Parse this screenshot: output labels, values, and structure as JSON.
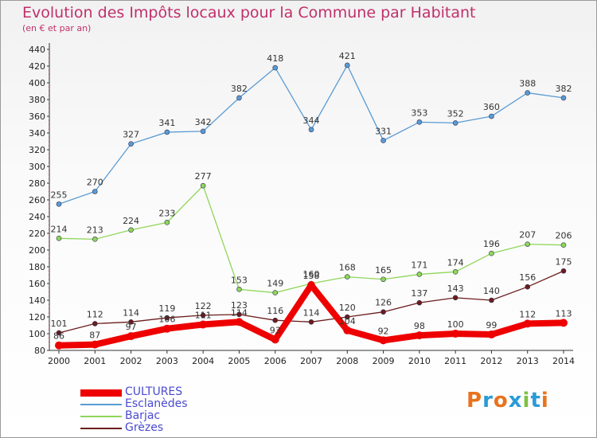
{
  "header": {
    "title": "Evolution des Impôts locaux pour la Commune par Habitant",
    "subtitle": "(en € et par an)"
  },
  "logo": {
    "text": "Proxiti",
    "colors": [
      "#e8731c",
      "#2a9bd6",
      "#e8731c",
      "#2a9bd6",
      "#7cc242",
      "#2a9bd6",
      "#e8731c"
    ]
  },
  "chart_data": {
    "type": "line",
    "x": [
      2000,
      2001,
      2002,
      2003,
      2004,
      2005,
      2006,
      2007,
      2008,
      2009,
      2010,
      2011,
      2012,
      2013,
      2014
    ],
    "ylim": [
      80,
      440
    ],
    "yticks": [
      80,
      100,
      120,
      140,
      160,
      180,
      200,
      220,
      240,
      260,
      280,
      300,
      320,
      340,
      360,
      380,
      400,
      420,
      440
    ],
    "grid": false,
    "legend_position": "bottom-left",
    "series": [
      {
        "name": "CULTURES",
        "color": "#ee0000",
        "values": [
          86,
          87,
          97,
          106,
          111,
          114,
          93,
          158,
          104,
          92,
          98,
          100,
          99,
          112,
          113
        ]
      },
      {
        "name": "Esclanèdes",
        "color": "#5a9bd4",
        "values": [
          255,
          270,
          327,
          341,
          342,
          382,
          418,
          344,
          421,
          331,
          353,
          352,
          360,
          388,
          382
        ]
      },
      {
        "name": "Barjac",
        "color": "#8fd65a",
        "values": [
          214,
          213,
          224,
          233,
          277,
          153,
          149,
          160,
          168,
          165,
          171,
          174,
          196,
          207,
          206
        ]
      },
      {
        "name": "Grèzes",
        "color": "#6b1d1d",
        "values": [
          101,
          112,
          114,
          119,
          122,
          123,
          116,
          114,
          120,
          126,
          137,
          143,
          140,
          156,
          175
        ]
      }
    ]
  }
}
